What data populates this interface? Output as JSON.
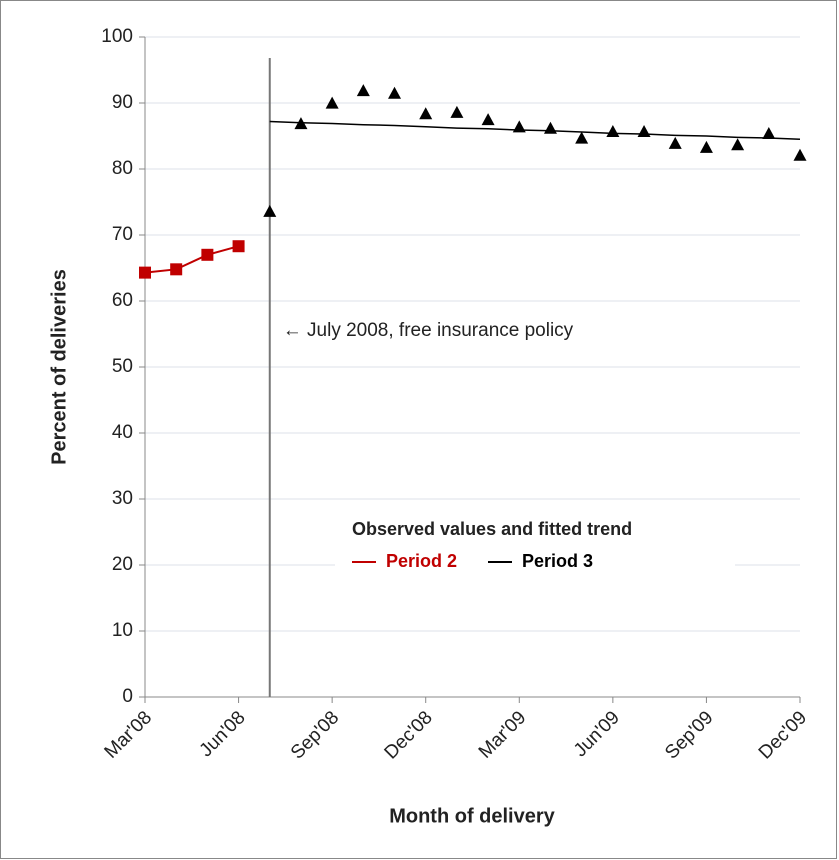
{
  "chart_data": {
    "type": "line",
    "y_label": "Percent of deliveries",
    "x_label": "Month of delivery",
    "categories": [
      "Mar'08",
      null,
      null,
      "Jun'08",
      null,
      null,
      "Sep'08",
      null,
      null,
      "Dec'08",
      null,
      null,
      "Mar'09",
      null,
      null,
      "Jun'09",
      null,
      null,
      "Sep'09",
      null,
      null,
      "Dec'09"
    ],
    "series": [
      {
        "name": "Period 2",
        "color": "#c00000",
        "marker": "square",
        "line": true,
        "values": [
          64.3,
          64.8,
          67.0,
          68.3,
          null,
          null,
          null,
          null,
          null,
          null,
          null,
          null,
          null,
          null,
          null,
          null,
          null,
          null,
          null,
          null,
          null,
          null
        ]
      },
      {
        "name": "Period 3",
        "color": "#000000",
        "marker": "triangle",
        "line": false,
        "values": [
          null,
          null,
          null,
          null,
          73.5,
          86.8,
          89.9,
          91.8,
          91.4,
          88.3,
          88.5,
          87.4,
          86.3,
          86.1,
          84.6,
          85.6,
          85.6,
          83.8,
          83.2,
          83.6,
          85.3,
          82.0
        ],
        "trend": [
          null,
          null,
          null,
          null,
          87.2,
          87.0,
          86.9,
          86.7,
          86.6,
          86.4,
          86.2,
          86.1,
          85.9,
          85.8,
          85.6,
          85.4,
          85.3,
          85.1,
          85.0,
          84.8,
          84.7,
          84.5
        ]
      }
    ],
    "legend_title": "Observed values and fitted trend",
    "annotation": {
      "text": "← July 2008, free insurance policy",
      "at": 4
    },
    "ylim": [
      0,
      100
    ],
    "yticks": [
      0,
      10,
      20,
      30,
      40,
      50,
      60,
      70,
      80,
      90,
      100
    ],
    "grid": true
  }
}
